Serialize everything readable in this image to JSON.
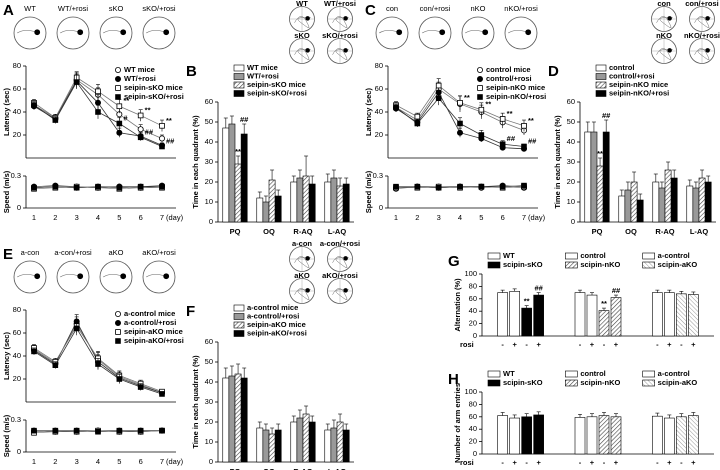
{
  "chart_data": [
    {
      "type": "line",
      "panel": "A",
      "track_labels": [
        "WT",
        "WT/+rosi",
        "sKO",
        "sKO/+rosi"
      ],
      "ylabel": "Latency (sec)",
      "ylim": [
        0,
        80
      ],
      "yticks": [
        20,
        40,
        60,
        80
      ],
      "xlabel": "(day)",
      "categories": [
        "1",
        "2",
        "3",
        "4",
        "5",
        "6",
        "7"
      ],
      "speed": {
        "ylabel": "Speed (m/s)",
        "ylim": [
          0,
          0.3
        ],
        "yticks": [
          0,
          0.3
        ]
      },
      "series": [
        {
          "name": "WT mice",
          "marker": "circle-open",
          "color": "#777777",
          "values": [
            46,
            35,
            68,
            55,
            38,
            25,
            17
          ],
          "errors": [
            3,
            3,
            6,
            6,
            5,
            4,
            3
          ],
          "speed": [
            0.19,
            0.2,
            0.19,
            0.2,
            0.2,
            0.19,
            0.2
          ]
        },
        {
          "name": "WT/+rosi",
          "marker": "circle-filled",
          "color": "#333333",
          "values": [
            45,
            34,
            67,
            48,
            22,
            19,
            11
          ],
          "errors": [
            3,
            3,
            6,
            7,
            4,
            3,
            2
          ],
          "speed": [
            0.2,
            0.21,
            0.2,
            0.19,
            0.2,
            0.2,
            0.21
          ]
        },
        {
          "name": "seipin-sKO mice",
          "marker": "square-open",
          "color": "#777777",
          "values": [
            48,
            35,
            70,
            58,
            45,
            37,
            28
          ],
          "errors": [
            3,
            3,
            5,
            6,
            6,
            5,
            5
          ],
          "annotations": [
            null,
            null,
            null,
            null,
            "**",
            "**",
            "**"
          ],
          "speed": [
            0.18,
            0.19,
            0.2,
            0.19,
            0.18,
            0.19,
            0.19
          ]
        },
        {
          "name": "seipin-sKO/+rosi",
          "marker": "square-filled",
          "color": "#333333",
          "values": [
            46,
            33,
            66,
            40,
            30,
            18,
            10
          ],
          "errors": [
            3,
            3,
            6,
            6,
            5,
            3,
            2
          ],
          "annotations": [
            null,
            null,
            null,
            null,
            "#",
            "##",
            "##"
          ],
          "speed": [
            0.19,
            0.2,
            0.19,
            0.2,
            0.19,
            0.2,
            0.2
          ]
        }
      ]
    },
    {
      "type": "bar",
      "panel": "B",
      "probe_labels": [
        "WT",
        "WT/+rosi",
        "sKO",
        "sKO/+rosi"
      ],
      "ylabel": "Time in each quadrant (%)",
      "ylim": [
        0,
        60
      ],
      "yticks": [
        0,
        10,
        20,
        30,
        40,
        50,
        60
      ],
      "categories": [
        "PQ",
        "OQ",
        "R-AQ",
        "L-AQ"
      ],
      "series": [
        {
          "name": "WT mice",
          "color": "#ffffff",
          "values": [
            47,
            12,
            20,
            20
          ],
          "errors": [
            5,
            3,
            3,
            4
          ]
        },
        {
          "name": "WT/+rosi",
          "color": "#999999",
          "values": [
            49,
            10,
            22,
            22
          ],
          "errors": [
            4,
            3,
            4,
            4
          ]
        },
        {
          "name": "seipin-sKO mice",
          "color": "#ffffff",
          "pattern": "hatch",
          "values": [
            29,
            21,
            23,
            18
          ],
          "errors": [
            4,
            5,
            10,
            4
          ],
          "annotations": [
            "**",
            null,
            null,
            null
          ]
        },
        {
          "name": "seipin-sKO/+rosi",
          "color": "#000000",
          "values": [
            44,
            13,
            19,
            19
          ],
          "errors": [
            5,
            3,
            4,
            3
          ],
          "annotations": [
            "##",
            null,
            null,
            null
          ]
        }
      ]
    },
    {
      "type": "line",
      "panel": "C",
      "track_labels": [
        "con",
        "con/+rosi",
        "nKO",
        "nKO/+rosi"
      ],
      "ylabel": "Latency (sec)",
      "ylim": [
        0,
        80
      ],
      "yticks": [
        20,
        40,
        60,
        80
      ],
      "xlabel": "(day)",
      "categories": [
        "1",
        "2",
        "3",
        "4",
        "5",
        "6",
        "7"
      ],
      "speed": {
        "ylabel": "Speed (m/s)",
        "ylim": [
          0,
          0.3
        ],
        "yticks": [
          0,
          0.3
        ]
      },
      "series": [
        {
          "name": "control mice",
          "marker": "circle-open",
          "color": "#777777",
          "values": [
            44,
            33,
            60,
            47,
            40,
            31,
            24
          ],
          "errors": [
            3,
            3,
            6,
            7,
            6,
            5,
            4
          ],
          "speed": [
            0.18,
            0.2,
            0.19,
            0.2,
            0.19,
            0.2,
            0.19
          ]
        },
        {
          "name": "control/+rosi",
          "marker": "circle-filled",
          "color": "#333333",
          "values": [
            43,
            31,
            57,
            22,
            17,
            9,
            8
          ],
          "errors": [
            3,
            3,
            6,
            4,
            3,
            2,
            2
          ],
          "speed": [
            0.19,
            0.2,
            0.2,
            0.2,
            0.2,
            0.21,
            0.2
          ]
        },
        {
          "name": "seipin-nKO mice",
          "marker": "square-open",
          "color": "#777777",
          "values": [
            46,
            36,
            63,
            48,
            42,
            34,
            28
          ],
          "errors": [
            3,
            3,
            6,
            6,
            6,
            5,
            5
          ],
          "annotations": [
            null,
            null,
            null,
            "**",
            "**",
            "**",
            "**"
          ],
          "speed": [
            0.19,
            0.19,
            0.2,
            0.19,
            0.2,
            0.19,
            0.2
          ]
        },
        {
          "name": "seipin-nKO/+rosi",
          "marker": "square-filled",
          "color": "#333333",
          "values": [
            44,
            30,
            52,
            30,
            20,
            12,
            10
          ],
          "errors": [
            3,
            3,
            6,
            5,
            4,
            3,
            2
          ],
          "annotations": [
            null,
            null,
            null,
            null,
            null,
            "##",
            "##"
          ],
          "speed": [
            0.2,
            0.2,
            0.19,
            0.2,
            0.2,
            0.2,
            0.21
          ]
        }
      ]
    },
    {
      "type": "bar",
      "panel": "D",
      "probe_labels": [
        "con",
        "con/+rosi",
        "nKO",
        "nKO/+rosi"
      ],
      "ylabel": "Time in each quadrant (%)",
      "ylim": [
        0,
        60
      ],
      "yticks": [
        0,
        10,
        20,
        30,
        40,
        50,
        60
      ],
      "categories": [
        "PQ",
        "OQ",
        "R-AQ",
        "L-AQ"
      ],
      "series": [
        {
          "name": "control",
          "color": "#ffffff",
          "values": [
            45,
            13,
            20,
            18
          ],
          "errors": [
            5,
            3,
            4,
            3
          ]
        },
        {
          "name": "control/+rosi",
          "color": "#999999",
          "values": [
            45,
            16,
            17,
            17
          ],
          "errors": [
            5,
            4,
            3,
            3
          ]
        },
        {
          "name": "seipin-nKO mice",
          "color": "#ffffff",
          "pattern": "hatch",
          "values": [
            28,
            20,
            26,
            22
          ],
          "errors": [
            4,
            5,
            4,
            4
          ],
          "annotations": [
            "**",
            null,
            null,
            null
          ]
        },
        {
          "name": "seipin-nKO/+rosi",
          "color": "#000000",
          "values": [
            45,
            11,
            22,
            20
          ],
          "errors": [
            6,
            3,
            4,
            3
          ],
          "annotations": [
            "##",
            null,
            null,
            null
          ]
        }
      ]
    },
    {
      "type": "line",
      "panel": "E",
      "track_labels": [
        "a-con",
        "a-con/+rosi",
        "aKO",
        "aKO/+rosi"
      ],
      "ylabel": "Latency (sec)",
      "ylim": [
        0,
        80
      ],
      "yticks": [
        20,
        40,
        60,
        80
      ],
      "xlabel": "(day)",
      "categories": [
        "1",
        "2",
        "3",
        "4",
        "5",
        "6",
        "7"
      ],
      "speed": {
        "ylabel": "Speed (m/s)",
        "ylim": [
          0,
          0.3
        ],
        "yticks": [
          0,
          0.3
        ]
      },
      "series": [
        {
          "name": "a-control mice",
          "marker": "circle-open",
          "color": "#777777",
          "values": [
            46,
            34,
            68,
            37,
            22,
            15,
            8
          ],
          "errors": [
            3,
            3,
            6,
            6,
            4,
            3,
            2
          ],
          "speed": [
            0.19,
            0.2,
            0.19,
            0.2,
            0.19,
            0.2,
            0.2
          ]
        },
        {
          "name": "a-control/+rosi",
          "marker": "circle-filled",
          "color": "#333333",
          "values": [
            45,
            33,
            70,
            35,
            21,
            14,
            8
          ],
          "errors": [
            3,
            3,
            6,
            6,
            4,
            3,
            2
          ],
          "speed": [
            0.2,
            0.19,
            0.2,
            0.2,
            0.2,
            0.19,
            0.2
          ]
        },
        {
          "name": "seipin-aKO mice",
          "marker": "square-open",
          "color": "#777777",
          "values": [
            47,
            35,
            66,
            38,
            23,
            16,
            9
          ],
          "errors": [
            3,
            3,
            6,
            6,
            4,
            3,
            2
          ],
          "speed": [
            0.18,
            0.19,
            0.19,
            0.2,
            0.19,
            0.19,
            0.2
          ]
        },
        {
          "name": "seipin-aKO/+rosi",
          "marker": "square-filled",
          "color": "#333333",
          "values": [
            44,
            32,
            64,
            33,
            20,
            13,
            7
          ],
          "errors": [
            3,
            3,
            6,
            5,
            4,
            3,
            2
          ],
          "speed": [
            0.2,
            0.2,
            0.2,
            0.19,
            0.2,
            0.2,
            0.2
          ]
        }
      ]
    },
    {
      "type": "bar",
      "panel": "F",
      "probe_labels": [
        "a-con",
        "a-con/+rosi",
        "aKO",
        "aKO/+rosi"
      ],
      "ylabel": "Time in each quadrant (%)",
      "ylim": [
        0,
        60
      ],
      "yticks": [
        0,
        10,
        20,
        30,
        40,
        50,
        60
      ],
      "categories": [
        "PQ",
        "OQ",
        "R-AQ",
        "L-AQ"
      ],
      "series": [
        {
          "name": "a-control mice",
          "color": "#ffffff",
          "values": [
            42,
            17,
            20,
            16
          ],
          "errors": [
            5,
            3,
            3,
            3
          ]
        },
        {
          "name": "a-control/+rosi",
          "color": "#999999",
          "values": [
            43,
            16,
            22,
            17
          ],
          "errors": [
            5,
            3,
            4,
            4
          ]
        },
        {
          "name": "seipin-aKO mice",
          "color": "#ffffff",
          "pattern": "hatch",
          "values": [
            44,
            14,
            24,
            20
          ],
          "errors": [
            5,
            3,
            4,
            4
          ]
        },
        {
          "name": "seipin-aKO/+rosi",
          "color": "#000000",
          "values": [
            42,
            16,
            20,
            16
          ],
          "errors": [
            5,
            3,
            3,
            3
          ]
        }
      ]
    },
    {
      "type": "paired-bar",
      "panel": "G",
      "ylabel": "Alternation (%)",
      "ylim": [
        0,
        100
      ],
      "yticks": [
        0,
        20,
        40,
        60,
        80,
        100
      ],
      "row_label": "rosi",
      "conditions": [
        "-",
        "+"
      ],
      "groups": [
        {
          "series": [
            {
              "name": "WT",
              "color": "#ffffff",
              "values": [
                70,
                72
              ],
              "errors": [
                4,
                4
              ]
            },
            {
              "name": "scipin-sKO",
              "color": "#000000",
              "values": [
                45,
                66
              ],
              "errors": [
                4,
                4
              ],
              "annotations": [
                "**",
                "##"
              ]
            }
          ]
        },
        {
          "series": [
            {
              "name": "control",
              "color": "#ffffff",
              "values": [
                70,
                66
              ],
              "errors": [
                4,
                4
              ]
            },
            {
              "name": "scipin-nKO",
              "color": "#ffffff",
              "pattern": "hatch",
              "values": [
                41,
                62
              ],
              "errors": [
                4,
                4
              ],
              "annotations": [
                "**",
                "##"
              ]
            }
          ]
        },
        {
          "series": [
            {
              "name": "a-control",
              "color": "#ffffff",
              "values": [
                70,
                70
              ],
              "errors": [
                4,
                4
              ]
            },
            {
              "name": "scipin-aKO",
              "color": "#ffffff",
              "pattern": "hatch-light",
              "values": [
                68,
                67
              ],
              "errors": [
                4,
                4
              ]
            }
          ]
        }
      ]
    },
    {
      "type": "paired-bar",
      "panel": "H",
      "ylabel": "Number of arm entries",
      "ylim": [
        0,
        100
      ],
      "yticks": [
        0,
        20,
        40,
        60,
        80,
        100
      ],
      "row_label": "rosi",
      "conditions": [
        "-",
        "+"
      ],
      "groups": [
        {
          "series": [
            {
              "name": "WT",
              "color": "#ffffff",
              "values": [
                62,
                58
              ],
              "errors": [
                5,
                5
              ]
            },
            {
              "name": "scipin-sKO",
              "color": "#000000",
              "values": [
                60,
                63
              ],
              "errors": [
                5,
                5
              ]
            }
          ]
        },
        {
          "series": [
            {
              "name": "control",
              "color": "#ffffff",
              "values": [
                59,
                60
              ],
              "errors": [
                5,
                5
              ]
            },
            {
              "name": "scipin-nKO",
              "color": "#ffffff",
              "pattern": "hatch",
              "values": [
                62,
                60
              ],
              "errors": [
                5,
                5
              ]
            }
          ]
        },
        {
          "series": [
            {
              "name": "a-control",
              "color": "#ffffff",
              "values": [
                61,
                58
              ],
              "errors": [
                5,
                5
              ]
            },
            {
              "name": "scipin-aKO",
              "color": "#ffffff",
              "pattern": "hatch-light",
              "values": [
                60,
                62
              ],
              "errors": [
                5,
                5
              ]
            }
          ]
        }
      ]
    }
  ]
}
